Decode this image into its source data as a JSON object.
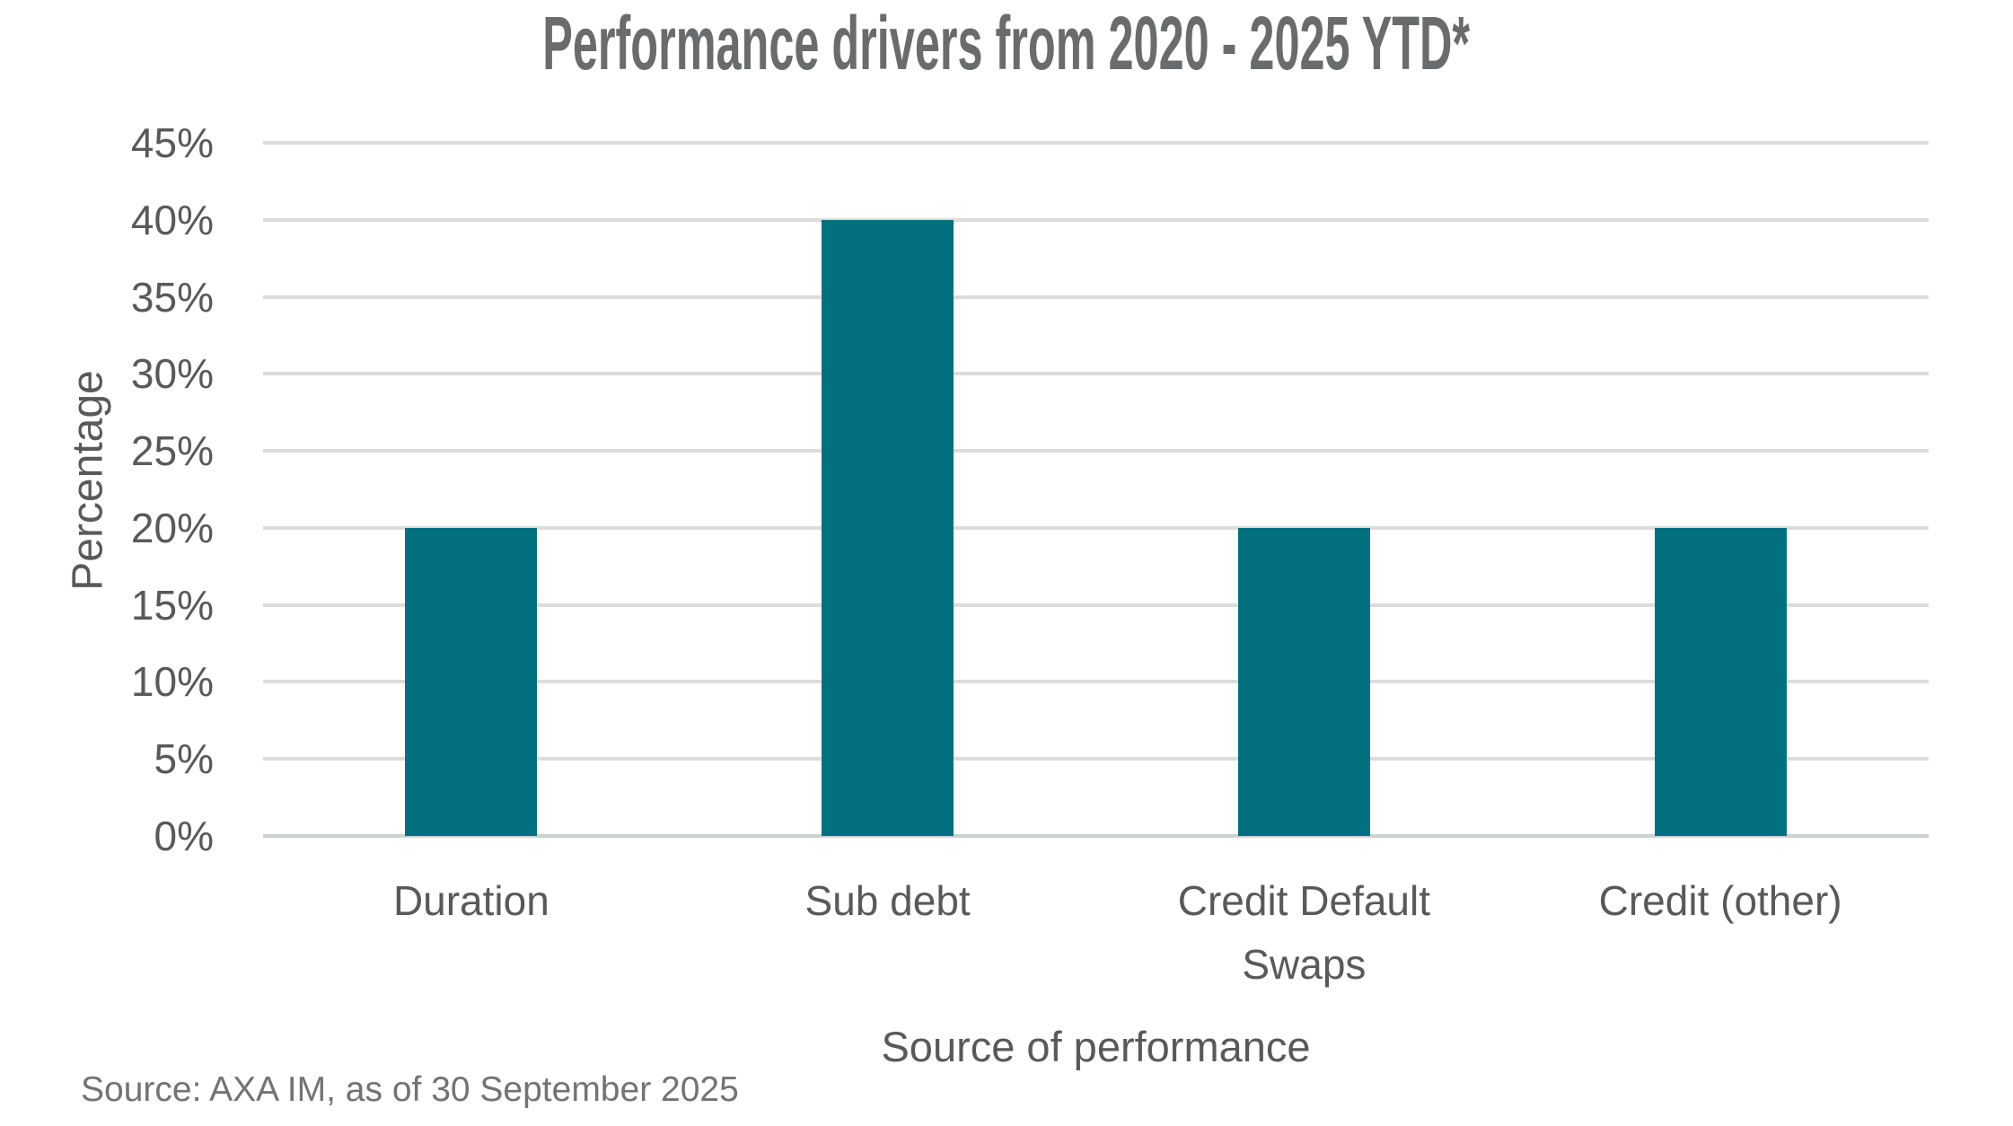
{
  "chart_data": {
    "type": "bar",
    "title": "Performance drivers from 2020 - 2025 YTD*",
    "categories": [
      "Duration",
      "Sub debt",
      "Credit Default Swaps",
      "Credit (other)"
    ],
    "category_display": [
      "Duration",
      "Sub debt",
      "Credit Default\nSwaps",
      "Credit (other)"
    ],
    "values": [
      20,
      40,
      20,
      20
    ],
    "unit": "%",
    "xlabel": "Source of performance",
    "ylabel": "Percentage",
    "ylim": [
      0,
      45
    ],
    "ytick_step": 5,
    "ytick_labels": [
      "0%",
      "5%",
      "10%",
      "15%",
      "20%",
      "25%",
      "30%",
      "35%",
      "40%",
      "45%"
    ],
    "grid": true,
    "legend": "none",
    "source_note": "Source: AXA IM, as of 30 September 2025"
  },
  "colors": {
    "bar": "#02707e",
    "gridline": "#dcdcdc",
    "axis_zero_line": "#cdd1d1",
    "title_text": "#6a6b6d",
    "axis_text": "#595959",
    "source_text": "#737373"
  }
}
